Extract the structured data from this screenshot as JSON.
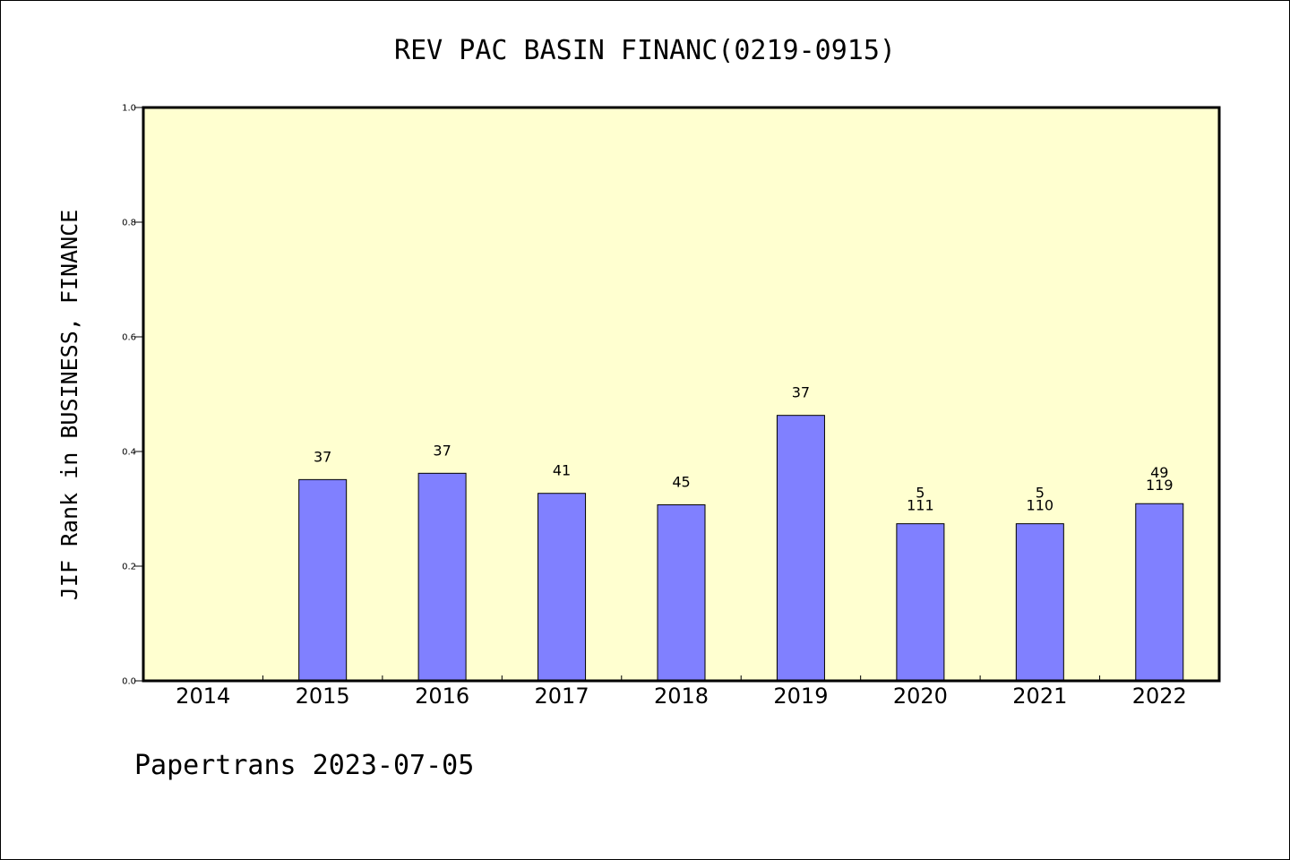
{
  "chart_data": {
    "type": "bar",
    "title": "REV PAC BASIN FINANC(0219-0915)",
    "ylabel": "JIF Rank in BUSINESS, FINANCE",
    "xlabel": "",
    "ylim": [
      0,
      1
    ],
    "yticks": [
      "0.0",
      "0.2",
      "0.4",
      "0.6",
      "0.8",
      "1.0"
    ],
    "categories": [
      "2014",
      "2015",
      "2016",
      "2017",
      "2018",
      "2019",
      "2020",
      "2021",
      "2022"
    ],
    "values": [
      null,
      0.351,
      0.362,
      0.327,
      0.307,
      0.463,
      0.274,
      0.274,
      0.309
    ],
    "labels": [
      [],
      [
        "37"
      ],
      [
        "37"
      ],
      [
        "41"
      ],
      [
        "45"
      ],
      [
        "37"
      ],
      [
        "5",
        "111"
      ],
      [
        "5",
        "110"
      ],
      [
        "49",
        "119"
      ]
    ],
    "grid": false,
    "colors": {
      "plot_bg": "#ffffd0",
      "bar": "#8080ff"
    }
  },
  "footer": "Papertrans 2023-07-05"
}
